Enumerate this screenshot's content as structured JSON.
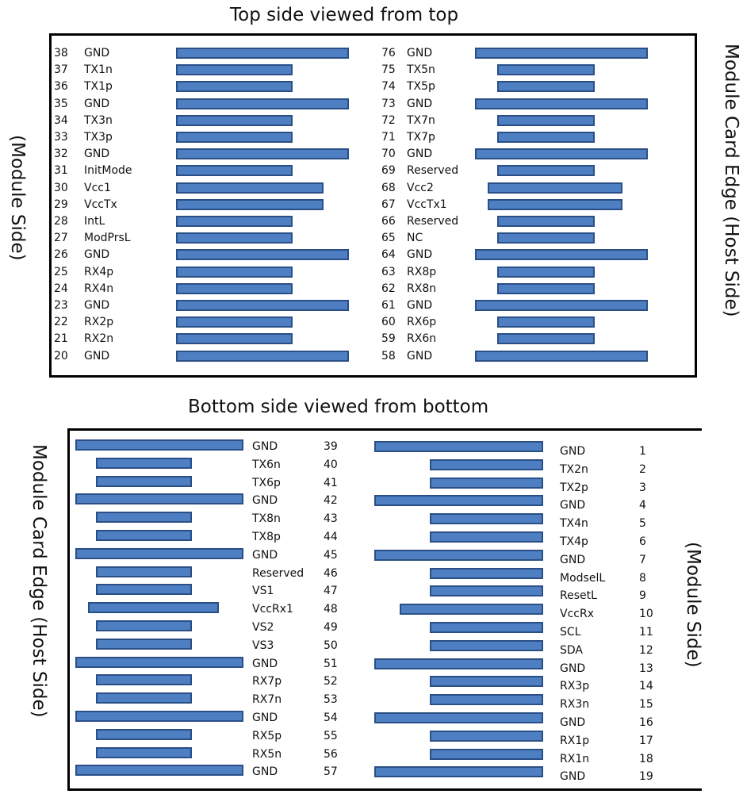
{
  "titles": {
    "top": "Top side viewed from top",
    "bottom": "Bottom side viewed from bottom"
  },
  "side_labels": {
    "top_left": "(Module Side)",
    "top_right": "Module Card Edge (Host Side)",
    "bottom_left": "Module Card Edge (Host Side)",
    "bottom_right": "(Module Side)"
  },
  "top_left_pins": [
    {
      "num": "38",
      "name": "GND",
      "len": "long"
    },
    {
      "num": "37",
      "name": "TX1n",
      "len": "short"
    },
    {
      "num": "36",
      "name": "TX1p",
      "len": "short"
    },
    {
      "num": "35",
      "name": "GND",
      "len": "long"
    },
    {
      "num": "34",
      "name": "TX3n",
      "len": "short"
    },
    {
      "num": "33",
      "name": "TX3p",
      "len": "short"
    },
    {
      "num": "32",
      "name": "GND",
      "len": "long"
    },
    {
      "num": "31",
      "name": "InitMode",
      "len": "short"
    },
    {
      "num": "30",
      "name": "Vcc1",
      "len": "medium"
    },
    {
      "num": "29",
      "name": "VccTx",
      "len": "medium"
    },
    {
      "num": "28",
      "name": "IntL",
      "len": "short"
    },
    {
      "num": "27",
      "name": "ModPrsL",
      "len": "short"
    },
    {
      "num": "26",
      "name": "GND",
      "len": "long"
    },
    {
      "num": "25",
      "name": "RX4p",
      "len": "short"
    },
    {
      "num": "24",
      "name": "RX4n",
      "len": "short"
    },
    {
      "num": "23",
      "name": "GND",
      "len": "long"
    },
    {
      "num": "22",
      "name": "RX2p",
      "len": "short"
    },
    {
      "num": "21",
      "name": "RX2n",
      "len": "short"
    },
    {
      "num": "20",
      "name": "GND",
      "len": "long"
    }
  ],
  "top_right_pins": [
    {
      "num": "76",
      "name": "GND",
      "len": "long"
    },
    {
      "num": "75",
      "name": "TX5n",
      "len": "short"
    },
    {
      "num": "74",
      "name": "TX5p",
      "len": "short"
    },
    {
      "num": "73",
      "name": "GND",
      "len": "long"
    },
    {
      "num": "72",
      "name": "TX7n",
      "len": "short"
    },
    {
      "num": "71",
      "name": "TX7p",
      "len": "short"
    },
    {
      "num": "70",
      "name": "GND",
      "len": "long"
    },
    {
      "num": "69",
      "name": "Reserved",
      "len": "short"
    },
    {
      "num": "68",
      "name": "Vcc2",
      "len": "medium"
    },
    {
      "num": "67",
      "name": "VccTx1",
      "len": "medium"
    },
    {
      "num": "66",
      "name": "Reserved",
      "len": "short"
    },
    {
      "num": "65",
      "name": "NC",
      "len": "short"
    },
    {
      "num": "64",
      "name": "GND",
      "len": "long"
    },
    {
      "num": "63",
      "name": "RX8p",
      "len": "short"
    },
    {
      "num": "62",
      "name": "RX8n",
      "len": "short"
    },
    {
      "num": "61",
      "name": "GND",
      "len": "long"
    },
    {
      "num": "60",
      "name": "RX6p",
      "len": "short"
    },
    {
      "num": "59",
      "name": "RX6n",
      "len": "short"
    },
    {
      "num": "58",
      "name": "GND",
      "len": "long"
    }
  ],
  "bottom_left_pins": [
    {
      "num": "39",
      "name": "GND",
      "len": "long"
    },
    {
      "num": "40",
      "name": "TX6n",
      "len": "short"
    },
    {
      "num": "41",
      "name": "TX6p",
      "len": "short"
    },
    {
      "num": "42",
      "name": "GND",
      "len": "long"
    },
    {
      "num": "43",
      "name": "TX8n",
      "len": "short"
    },
    {
      "num": "44",
      "name": "TX8p",
      "len": "short"
    },
    {
      "num": "45",
      "name": "GND",
      "len": "long"
    },
    {
      "num": "46",
      "name": "Reserved",
      "len": "short"
    },
    {
      "num": "47",
      "name": "VS1",
      "len": "short"
    },
    {
      "num": "48",
      "name": "VccRx1",
      "len": "medium"
    },
    {
      "num": "49",
      "name": "VS2",
      "len": "short"
    },
    {
      "num": "50",
      "name": "VS3",
      "len": "short"
    },
    {
      "num": "51",
      "name": "GND",
      "len": "long"
    },
    {
      "num": "52",
      "name": "RX7p",
      "len": "short"
    },
    {
      "num": "53",
      "name": "RX7n",
      "len": "short"
    },
    {
      "num": "54",
      "name": "GND",
      "len": "long"
    },
    {
      "num": "55",
      "name": "RX5p",
      "len": "short"
    },
    {
      "num": "56",
      "name": "RX5n",
      "len": "short"
    },
    {
      "num": "57",
      "name": "GND",
      "len": "long"
    }
  ],
  "bottom_right_pins": [
    {
      "num": "1",
      "name": "GND",
      "len": "long"
    },
    {
      "num": "2",
      "name": "TX2n",
      "len": "short"
    },
    {
      "num": "3",
      "name": "TX2p",
      "len": "short"
    },
    {
      "num": "4",
      "name": "GND",
      "len": "long"
    },
    {
      "num": "5",
      "name": "TX4n",
      "len": "short"
    },
    {
      "num": "6",
      "name": "TX4p",
      "len": "short"
    },
    {
      "num": "7",
      "name": "GND",
      "len": "long"
    },
    {
      "num": "8",
      "name": "ModselL",
      "len": "short"
    },
    {
      "num": "9",
      "name": "ResetL",
      "len": "short"
    },
    {
      "num": "10",
      "name": "VccRx",
      "len": "medium"
    },
    {
      "num": "11",
      "name": "SCL",
      "len": "short"
    },
    {
      "num": "12",
      "name": "SDA",
      "len": "short"
    },
    {
      "num": "13",
      "name": "GND",
      "len": "long"
    },
    {
      "num": "14",
      "name": "RX3p",
      "len": "short"
    },
    {
      "num": "15",
      "name": "RX3n",
      "len": "short"
    },
    {
      "num": "16",
      "name": "GND",
      "len": "long"
    },
    {
      "num": "17",
      "name": "RX1p",
      "len": "short"
    },
    {
      "num": "18",
      "name": "RX1n",
      "len": "short"
    },
    {
      "num": "19",
      "name": "GND",
      "len": "long"
    }
  ],
  "colors": {
    "pad_fill": "#4f7fc3",
    "pad_border": "#2a4f86"
  }
}
